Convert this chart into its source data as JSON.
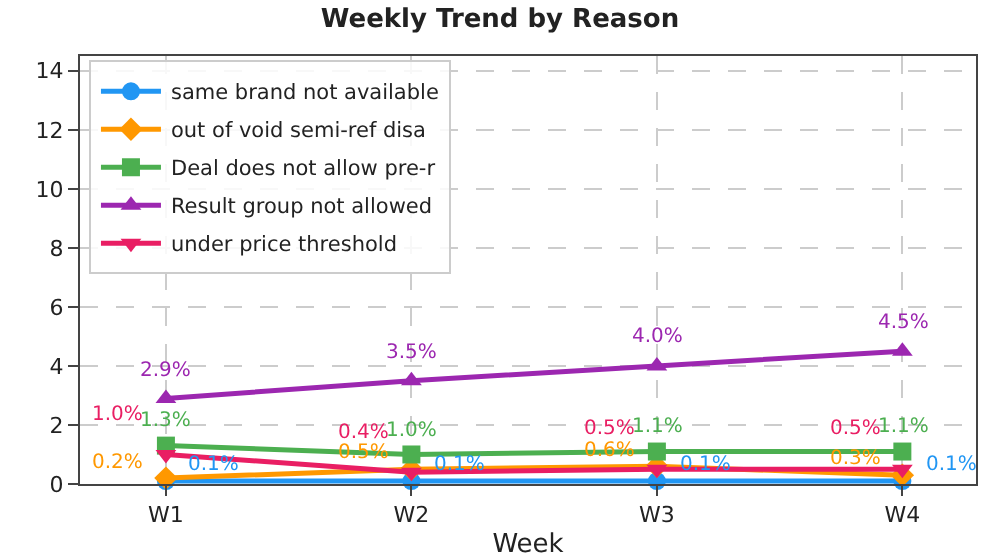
{
  "chart_data": {
    "type": "line",
    "title": "Weekly Trend by Reason",
    "xlabel": "Week",
    "categories": [
      "W1",
      "W2",
      "W3",
      "W4"
    ],
    "ylim": [
      0,
      14.5
    ],
    "yticks": [
      0,
      2,
      4,
      6,
      8,
      10,
      12,
      14
    ],
    "grid": true,
    "legend": "top left",
    "line_style": "solid",
    "series": [
      {
        "name": "same brand not available",
        "color": "#2196f3",
        "marker": "circle",
        "values": [
          0.1,
          0.1,
          0.1,
          0.1
        ],
        "value_labels": [
          "0.1%",
          "0.1%",
          "0.1%",
          "0.1%"
        ]
      },
      {
        "name": "out of void semi-ref disa",
        "color": "#ff9800",
        "marker": "diamond",
        "values": [
          0.2,
          0.5,
          0.6,
          0.3
        ],
        "value_labels": [
          "0.2%",
          "0.5%",
          "0.6%",
          "0.3%"
        ]
      },
      {
        "name": "Deal does not allow pre-r",
        "color": "#4caf50",
        "marker": "square",
        "values": [
          1.3,
          1.0,
          1.1,
          1.1
        ],
        "value_labels": [
          "1.3%",
          "1.0%",
          "1.1%",
          "1.1%"
        ]
      },
      {
        "name": "Result group not allowed",
        "color": "#9c27b0",
        "marker": "triangle",
        "values": [
          2.9,
          3.5,
          4.0,
          4.5
        ],
        "value_labels": [
          "2.9%",
          "3.5%",
          "4.0%",
          "4.5%"
        ]
      },
      {
        "name": "under price threshold",
        "color": "#e91e63",
        "marker": "triangle-down",
        "values": [
          1.0,
          0.4,
          0.5,
          0.5
        ],
        "value_labels": [
          "1.0%",
          "0.4%",
          "0.5%",
          "0.5%"
        ]
      }
    ]
  }
}
